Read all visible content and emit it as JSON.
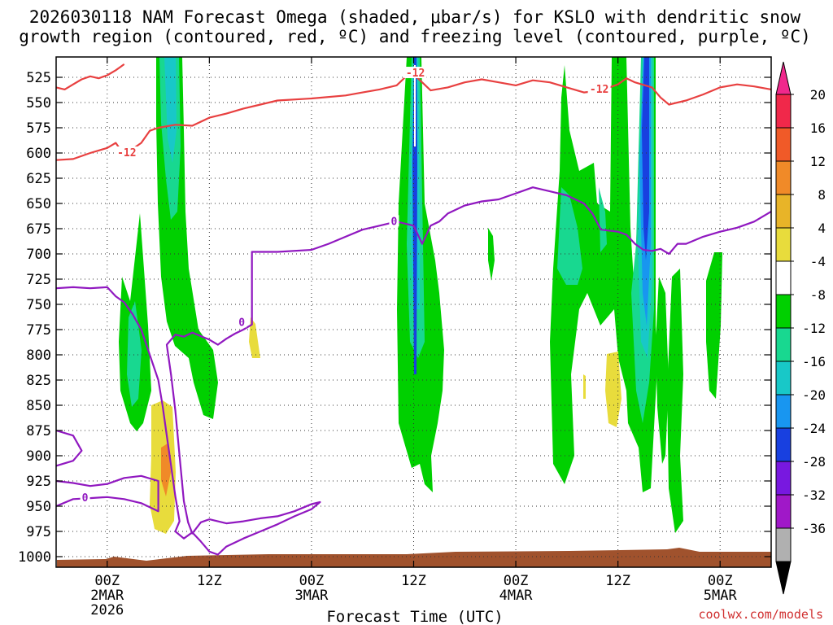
{
  "chart_data": {
    "type": "heatmap",
    "title_lines": [
      "2026030118 NAM Forecast Omega (shaded, μbar/s) for KSLO with dendritic snow",
      "growth region (contoured, red, ºC) and freezing level (contoured, purple, ºC)"
    ],
    "xlabel": "Forecast Time (UTC)",
    "credit": "coolwx.com/models",
    "y_axis": {
      "ticks": [
        525,
        550,
        575,
        600,
        625,
        650,
        675,
        700,
        725,
        750,
        775,
        800,
        825,
        850,
        875,
        900,
        925,
        950,
        975,
        1000
      ],
      "reversed": true
    },
    "x_axis": {
      "hour_range": [
        -6,
        78
      ],
      "ticks": [
        {
          "hour": 0,
          "label": "00Z",
          "sub1": "2MAR",
          "sub2": "2026"
        },
        {
          "hour": 12,
          "label": "12Z",
          "sub1": "",
          "sub2": ""
        },
        {
          "hour": 24,
          "label": "00Z",
          "sub1": "3MAR",
          "sub2": ""
        },
        {
          "hour": 36,
          "label": "12Z",
          "sub1": "",
          "sub2": ""
        },
        {
          "hour": 48,
          "label": "00Z",
          "sub1": "4MAR",
          "sub2": ""
        },
        {
          "hour": 60,
          "label": "12Z",
          "sub1": "",
          "sub2": ""
        },
        {
          "hour": 72,
          "label": "00Z",
          "sub1": "5MAR",
          "sub2": ""
        }
      ]
    },
    "colorbar": {
      "labels": [
        20,
        16,
        12,
        8,
        4,
        -4,
        -8,
        -12,
        -16,
        -20,
        -24,
        -28,
        -32,
        -36
      ],
      "colors": [
        "#f0284a",
        "#f05a28",
        "#f08a28",
        "#e8b428",
        "#e8dc3c",
        "#ffffff",
        "#00d000",
        "#18d890",
        "#18c8c8",
        "#1896f0",
        "#1840e0",
        "#7818e0",
        "#a018c8",
        "#b0b0b0"
      ],
      "top_arrow_color": "#f0288c",
      "bottom_arrow_color": "#000000"
    },
    "series": [
      {
        "name": "-12",
        "color": "#e84040",
        "points": [
          [
            -6,
            535
          ],
          [
            -5,
            537
          ],
          [
            -4,
            532
          ],
          [
            -3,
            527
          ],
          [
            -2,
            524
          ],
          [
            -1,
            526
          ],
          [
            0,
            523
          ],
          [
            1,
            518
          ],
          [
            1.5,
            515
          ],
          [
            2,
            512
          ]
        ],
        "labels": []
      },
      {
        "name": "-12",
        "color": "#e84040",
        "points": [
          [
            -6,
            607
          ],
          [
            -4,
            606
          ],
          [
            -2,
            600
          ],
          [
            0,
            595
          ],
          [
            1,
            590
          ],
          [
            1.5,
            596
          ],
          [
            2,
            598
          ],
          [
            3,
            596
          ],
          [
            4,
            590
          ],
          [
            5,
            578
          ],
          [
            6,
            575
          ],
          [
            8,
            572
          ],
          [
            10,
            573
          ],
          [
            12,
            565
          ],
          [
            14,
            561
          ],
          [
            16,
            556
          ],
          [
            18,
            552
          ],
          [
            20,
            548
          ],
          [
            24,
            546
          ],
          [
            28,
            543
          ],
          [
            30,
            540
          ],
          [
            32,
            537
          ],
          [
            34,
            533
          ],
          [
            35,
            525
          ],
          [
            35.5,
            520
          ],
          [
            36,
            522
          ]
        ],
        "labels": [
          {
            "hour": 2.3,
            "p": 600,
            "text": "-12"
          }
        ]
      },
      {
        "name": "-12",
        "color": "#e84040",
        "points": [
          [
            36,
            522
          ],
          [
            37,
            530
          ],
          [
            38,
            538
          ],
          [
            40,
            535
          ],
          [
            42,
            530
          ],
          [
            44,
            527
          ],
          [
            46,
            530
          ],
          [
            48,
            533
          ],
          [
            50,
            528
          ],
          [
            52,
            530
          ],
          [
            54,
            535
          ],
          [
            56,
            540
          ],
          [
            58,
            538
          ],
          [
            60,
            532
          ],
          [
            61,
            526
          ],
          [
            62,
            530
          ],
          [
            64,
            535
          ],
          [
            65,
            545
          ],
          [
            66,
            552
          ],
          [
            68,
            548
          ],
          [
            70,
            542
          ],
          [
            72,
            535
          ],
          [
            74,
            532
          ],
          [
            76,
            534
          ],
          [
            78,
            537
          ]
        ],
        "labels": [
          {
            "hour": 36.2,
            "p": 521,
            "text": "-12"
          },
          {
            "hour": 57.8,
            "p": 537,
            "text": "-12"
          }
        ]
      },
      {
        "name": "0",
        "color": "#9018c0",
        "points": [
          [
            -6,
            734
          ],
          [
            -4,
            733
          ],
          [
            -2,
            734
          ],
          [
            0,
            733
          ],
          [
            1,
            742
          ],
          [
            2,
            748
          ],
          [
            3,
            760
          ],
          [
            4,
            775
          ],
          [
            5,
            800
          ],
          [
            6,
            825
          ],
          [
            6.5,
            850
          ],
          [
            7,
            880
          ],
          [
            7.5,
            910
          ],
          [
            8,
            940
          ],
          [
            8.5,
            965
          ],
          [
            8,
            975
          ],
          [
            9,
            982
          ],
          [
            10,
            976
          ],
          [
            11,
            985
          ],
          [
            12,
            995
          ],
          [
            13,
            998
          ],
          [
            14,
            990
          ],
          [
            16,
            982
          ],
          [
            18,
            975
          ],
          [
            20,
            968
          ],
          [
            22,
            960
          ],
          [
            24,
            953
          ],
          [
            25,
            946
          ],
          [
            24,
            948
          ],
          [
            22,
            955
          ],
          [
            20,
            960
          ],
          [
            18,
            962
          ],
          [
            16,
            965
          ],
          [
            14,
            967
          ],
          [
            12,
            963
          ],
          [
            11,
            966
          ],
          [
            10,
            977
          ],
          [
            9.5,
            966
          ],
          [
            9,
            945
          ],
          [
            8.5,
            900
          ],
          [
            8,
            855
          ],
          [
            7.5,
            820
          ],
          [
            7,
            790
          ],
          [
            8,
            780
          ],
          [
            9,
            782
          ],
          [
            10,
            778
          ],
          [
            12,
            785
          ],
          [
            13,
            790
          ],
          [
            14,
            784
          ],
          [
            15,
            779
          ],
          [
            16,
            775
          ],
          [
            17,
            770
          ],
          [
            17,
            720
          ],
          [
            17,
            698
          ],
          [
            20,
            698
          ],
          [
            24,
            696
          ],
          [
            26,
            690
          ],
          [
            28,
            683
          ],
          [
            30,
            676
          ],
          [
            32,
            672
          ],
          [
            34,
            668
          ],
          [
            36,
            672
          ],
          [
            37,
            690
          ],
          [
            38,
            672
          ],
          [
            39,
            668
          ],
          [
            40,
            660
          ],
          [
            42,
            652
          ],
          [
            44,
            648
          ],
          [
            46,
            646
          ],
          [
            48,
            640
          ],
          [
            50,
            634
          ],
          [
            52,
            638
          ],
          [
            54,
            642
          ],
          [
            56,
            650
          ],
          [
            57,
            660
          ],
          [
            58,
            676
          ],
          [
            60,
            678
          ],
          [
            61,
            681
          ],
          [
            62,
            690
          ],
          [
            63,
            696
          ],
          [
            64,
            697
          ],
          [
            65,
            695
          ],
          [
            66,
            700
          ],
          [
            67,
            690
          ],
          [
            68,
            690
          ],
          [
            70,
            683
          ],
          [
            72,
            678
          ],
          [
            74,
            674
          ],
          [
            76,
            668
          ],
          [
            78,
            658
          ]
        ],
        "labels": [
          {
            "hour": 15.8,
            "p": 768,
            "text": "0"
          },
          {
            "hour": 33.7,
            "p": 668,
            "text": "0"
          }
        ]
      },
      {
        "name": "0",
        "color": "#9018c0",
        "points": [
          [
            -6,
            875
          ],
          [
            -4,
            880
          ],
          [
            -3,
            895
          ],
          [
            -4,
            905
          ],
          [
            -6,
            910
          ]
        ],
        "labels": []
      },
      {
        "name": "0",
        "color": "#9018c0",
        "points": [
          [
            -6,
            950
          ],
          [
            -4,
            943
          ],
          [
            -2,
            942
          ],
          [
            0,
            941
          ],
          [
            2,
            943
          ],
          [
            4,
            947
          ],
          [
            5,
            951
          ],
          [
            6,
            955
          ],
          [
            6,
            925
          ],
          [
            4,
            920
          ],
          [
            2,
            922
          ],
          [
            0,
            928
          ],
          [
            -2,
            930
          ],
          [
            -4,
            927
          ],
          [
            -6,
            925
          ]
        ],
        "labels": [
          {
            "hour": -2.6,
            "p": 942,
            "text": "0"
          }
        ]
      }
    ]
  }
}
